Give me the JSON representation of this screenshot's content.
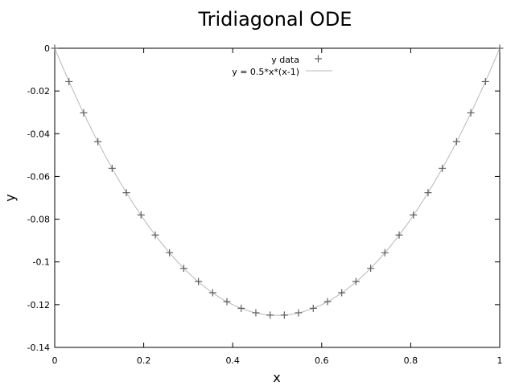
{
  "chart_data": {
    "type": "line",
    "title": "Tridiagonal ODE",
    "xlabel": "x",
    "ylabel": "y",
    "xlim": [
      0,
      1
    ],
    "ylim": [
      -0.14,
      0
    ],
    "xticks": [
      "0",
      "0.2",
      "0.4",
      "0.6",
      "0.8",
      "1"
    ],
    "yticks": [
      "0",
      "-0.02",
      "-0.04",
      "-0.06",
      "-0.08",
      "-0.1",
      "-0.12",
      "-0.14"
    ],
    "grid": false,
    "legend_position": "top-center",
    "series": [
      {
        "name": "y data",
        "style": "markers",
        "marker": "+",
        "color": "#606060",
        "x": [
          0,
          0.032,
          0.065,
          0.097,
          0.129,
          0.161,
          0.194,
          0.226,
          0.258,
          0.29,
          0.323,
          0.355,
          0.387,
          0.419,
          0.452,
          0.484,
          0.516,
          0.548,
          0.581,
          0.613,
          0.645,
          0.677,
          0.71,
          0.742,
          0.774,
          0.806,
          0.839,
          0.871,
          0.903,
          0.935,
          0.968,
          1
        ],
        "y": [
          0,
          -0.0156,
          -0.0302,
          -0.0437,
          -0.0562,
          -0.0676,
          -0.078,
          -0.0874,
          -0.0957,
          -0.103,
          -0.1092,
          -0.1144,
          -0.1186,
          -0.1217,
          -0.1238,
          -0.1249,
          -0.1249,
          -0.1238,
          -0.1217,
          -0.1186,
          -0.1144,
          -0.1092,
          -0.103,
          -0.0957,
          -0.0874,
          -0.078,
          -0.0676,
          -0.0562,
          -0.0437,
          -0.0302,
          -0.0156,
          0
        ]
      },
      {
        "name": "y = 0.5*x*(x-1)",
        "style": "line",
        "color": "#b8b8b8",
        "formula": "0.5*x*(x-1)"
      }
    ]
  }
}
